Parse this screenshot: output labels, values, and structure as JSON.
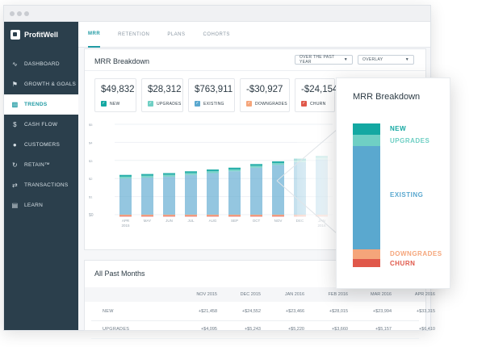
{
  "colors": {
    "teal": "#1f9aa3",
    "sidebar_bg": "#2b3f4c",
    "new": "#14a8a2",
    "upgrades": "#6fcfc4",
    "existing": "#5aa8cf",
    "downgrades": "#f5a57a",
    "churn": "#e0584a"
  },
  "app": {
    "name": "ProfitWell"
  },
  "sidebar": {
    "items": [
      {
        "label": "DASHBOARD",
        "icon": "pulse-icon"
      },
      {
        "label": "GROWTH & GOALS",
        "icon": "flag-icon"
      },
      {
        "label": "TRENDS",
        "icon": "bar-chart-icon",
        "active": true
      },
      {
        "label": "CASH FLOW",
        "icon": "dollar-icon"
      },
      {
        "label": "CUSTOMERS",
        "icon": "users-icon"
      },
      {
        "label": "RETAIN™",
        "icon": "refresh-icon"
      },
      {
        "label": "TRANSACTIONS",
        "icon": "transactions-icon"
      },
      {
        "label": "LEARN",
        "icon": "book-icon"
      }
    ]
  },
  "tabs": [
    {
      "label": "MRR",
      "active": true
    },
    {
      "label": "RETENTION"
    },
    {
      "label": "PLANS"
    },
    {
      "label": "COHORTS"
    }
  ],
  "breakdown": {
    "title": "MRR Breakdown",
    "period_dropdown": "OVER THE PAST YEAR",
    "view_dropdown": "OVERLAY",
    "stats": [
      {
        "value": "$49,832",
        "label": "NEW",
        "color": "#14a8a2"
      },
      {
        "value": "$28,312",
        "label": "UPGRADES",
        "color": "#6fcfc4"
      },
      {
        "value": "$763,911",
        "label": "EXISTING",
        "color": "#5aa8cf"
      },
      {
        "value": "-$30,927",
        "label": "DOWNGRADES",
        "color": "#f5a57a"
      },
      {
        "value": "-$24,154",
        "label": "CHURN",
        "color": "#e0584a"
      }
    ]
  },
  "chart_data": {
    "type": "bar",
    "stacked": true,
    "y_tick_labels": [
      "$0",
      "$1",
      "$2",
      "$3",
      "$4",
      "$5"
    ],
    "categories": [
      "APR 2015",
      "MAY",
      "JUN",
      "JUL",
      "AUG",
      "SEP",
      "OCT",
      "NOV",
      "DEC",
      "JAN 2016"
    ],
    "series": [
      {
        "name": "EXISTING",
        "color": "#5aa8cf",
        "values": [
          2.0,
          2.05,
          2.1,
          2.2,
          2.3,
          2.4,
          2.6,
          2.75,
          2.9,
          3.05
        ]
      },
      {
        "name": "UPGRADES",
        "color": "#6fcfc4",
        "values": [
          0.1,
          0.1,
          0.1,
          0.1,
          0.1,
          0.1,
          0.1,
          0.1,
          0.1,
          0.1
        ]
      },
      {
        "name": "NEW",
        "color": "#14a8a2",
        "values": [
          0.1,
          0.1,
          0.1,
          0.1,
          0.1,
          0.1,
          0.1,
          0.1,
          0.1,
          0.1
        ]
      },
      {
        "name": "DOWNGRADES",
        "color": "#f5a57a",
        "values": [
          -0.06,
          -0.06,
          -0.06,
          -0.06,
          -0.06,
          -0.06,
          -0.06,
          -0.06,
          -0.06,
          -0.06
        ]
      },
      {
        "name": "CHURN",
        "color": "#e0584a",
        "values": [
          -0.04,
          -0.04,
          -0.04,
          -0.04,
          -0.04,
          -0.04,
          -0.04,
          -0.04,
          -0.04,
          -0.04
        ]
      }
    ],
    "ylim": [
      0,
      5
    ],
    "grid": true
  },
  "past_months": {
    "title": "All Past Months",
    "columns": [
      "NOV 2015",
      "DEC 2015",
      "JAN 2016",
      "FEB 2016",
      "MAR 2016",
      "APR 2016"
    ],
    "rows": [
      {
        "label": "NEW",
        "values": [
          "+$21,458",
          "+$24,552",
          "+$23,466",
          "+$28,015",
          "+$23,994",
          "+$33,315"
        ]
      },
      {
        "label": "UPGRADES",
        "values": [
          "+$4,095",
          "+$5,243",
          "+$5,220",
          "+$3,660",
          "+$5,157",
          "+$6,410"
        ]
      }
    ]
  },
  "zoom": {
    "title": "MRR Breakdown",
    "legend": [
      {
        "label": "NEW",
        "color": "#14a8a2"
      },
      {
        "label": "UPGRADES",
        "color": "#6fcfc4"
      },
      {
        "label": "EXISTING",
        "color": "#5aa8cf"
      },
      {
        "label": "DOWNGRADES",
        "color": "#f5a57a"
      },
      {
        "label": "CHURN",
        "color": "#e0584a"
      }
    ]
  }
}
